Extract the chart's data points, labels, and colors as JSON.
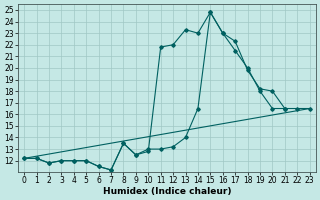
{
  "xlabel": "Humidex (Indice chaleur)",
  "bg_color": "#c5e8e5",
  "grid_color": "#a0c8c5",
  "line_color": "#006060",
  "xlim_min": -0.5,
  "xlim_max": 23.5,
  "ylim_min": 11,
  "ylim_max": 25.5,
  "xticks": [
    0,
    1,
    2,
    3,
    4,
    5,
    6,
    7,
    8,
    9,
    10,
    11,
    12,
    13,
    14,
    15,
    16,
    17,
    18,
    19,
    20,
    21,
    22,
    23
  ],
  "yticks": [
    12,
    13,
    14,
    15,
    16,
    17,
    18,
    19,
    20,
    21,
    22,
    23,
    24,
    25
  ],
  "curve1_x": [
    0,
    1,
    2,
    3,
    4,
    5,
    6,
    7,
    8,
    9,
    10,
    11,
    12,
    13,
    14,
    15,
    16,
    17,
    18,
    19,
    20,
    21
  ],
  "curve1_y": [
    12.2,
    12.2,
    11.8,
    12.0,
    12.0,
    12.0,
    11.5,
    11.2,
    13.5,
    12.5,
    12.8,
    21.8,
    22.0,
    23.3,
    23.0,
    24.8,
    23.0,
    22.3,
    19.8,
    18.2,
    18.0,
    16.5
  ],
  "curve2_x": [
    0,
    1,
    2,
    3,
    4,
    5,
    6,
    7,
    8,
    9,
    10,
    11,
    12,
    13,
    14,
    15,
    16,
    17,
    18,
    19,
    20,
    21,
    22,
    23
  ],
  "curve2_y": [
    12.2,
    12.2,
    11.8,
    12.0,
    12.0,
    12.0,
    11.5,
    11.2,
    13.5,
    12.5,
    13.0,
    13.0,
    13.2,
    14.0,
    16.5,
    24.8,
    23.0,
    21.5,
    20.0,
    18.0,
    16.5,
    16.5,
    16.5,
    16.5
  ],
  "line3_x": [
    0,
    23
  ],
  "line3_y": [
    12.2,
    16.5
  ],
  "tick_fontsize": 5.5,
  "xlabel_fontsize": 6.5
}
